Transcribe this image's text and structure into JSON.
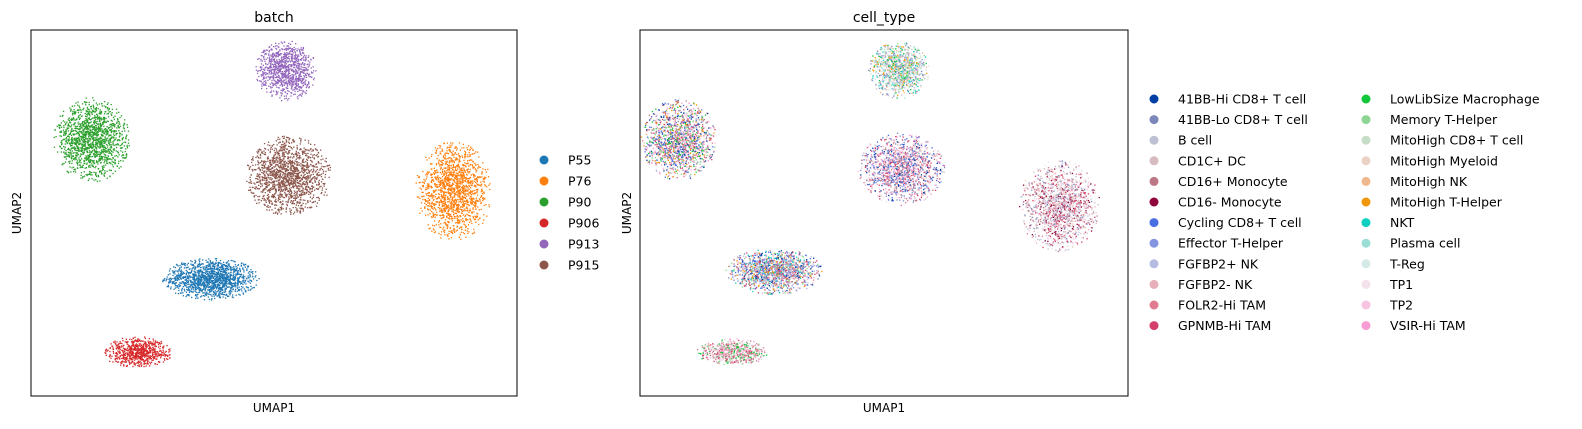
{
  "chart_data": [
    {
      "type": "scatter",
      "title": "batch",
      "xlabel": "UMAP1",
      "ylabel": "UMAP2",
      "xlim": [
        0,
        100
      ],
      "ylim": [
        0,
        100
      ],
      "grid": false,
      "ticks": false,
      "legend": {
        "placement": "right",
        "columns": 1
      },
      "series": [
        {
          "name": "P55",
          "color": "#1f77b4",
          "cluster": {
            "cx": 37,
            "cy": 32,
            "rx": 9.5,
            "ry": 5.5,
            "n": 1400
          }
        },
        {
          "name": "P76",
          "color": "#ff7f0e",
          "cluster": {
            "cx": 87,
            "cy": 56,
            "rx": 7.5,
            "ry": 13,
            "n": 1500
          }
        },
        {
          "name": "P90",
          "color": "#2ca02c",
          "cluster": {
            "cx": 12.5,
            "cy": 70,
            "rx": 7.5,
            "ry": 11,
            "n": 1500
          }
        },
        {
          "name": "P906",
          "color": "#d62728",
          "cluster": {
            "cx": 22,
            "cy": 12,
            "rx": 7,
            "ry": 4,
            "n": 700
          }
        },
        {
          "name": "P913",
          "color": "#9467bd",
          "cluster": {
            "cx": 52.5,
            "cy": 89,
            "rx": 6,
            "ry": 8,
            "n": 1000
          }
        },
        {
          "name": "P915",
          "color": "#8c564b",
          "cluster": {
            "cx": 53,
            "cy": 60,
            "rx": 8.5,
            "ry": 10.5,
            "n": 1500
          }
        }
      ]
    },
    {
      "type": "scatter",
      "title": "cell_type",
      "xlabel": "UMAP1",
      "ylabel": "UMAP2",
      "xlim": [
        0,
        100
      ],
      "ylim": [
        0,
        100
      ],
      "grid": false,
      "ticks": false,
      "legend": {
        "placement": "right",
        "columns": 2
      },
      "series": [
        {
          "name": "41BB-Hi CD8+ T cell",
          "color": "#023fa5"
        },
        {
          "name": "41BB-Lo CD8+ T cell",
          "color": "#7d87b9"
        },
        {
          "name": "B cell",
          "color": "#bec1d4"
        },
        {
          "name": "CD1C+ DC",
          "color": "#d6bcc0"
        },
        {
          "name": "CD16+ Monocyte",
          "color": "#bb7784"
        },
        {
          "name": "CD16- Monocyte",
          "color": "#8e063b"
        },
        {
          "name": "Cycling CD8+ T cell",
          "color": "#4a6fe3"
        },
        {
          "name": "Effector T-Helper",
          "color": "#8595e1"
        },
        {
          "name": "FGFBP2+ NK",
          "color": "#b5bbe3"
        },
        {
          "name": "FGFBP2- NK",
          "color": "#e6afb9"
        },
        {
          "name": "FOLR2-Hi TAM",
          "color": "#e07b91"
        },
        {
          "name": "GPNMB-Hi TAM",
          "color": "#d33f6a"
        },
        {
          "name": "LowLibSize Macrophage",
          "color": "#11c638"
        },
        {
          "name": "Memory T-Helper",
          "color": "#8dd593"
        },
        {
          "name": "MitoHigh CD8+ T cell",
          "color": "#c6dec7"
        },
        {
          "name": "MitoHigh Myeloid",
          "color": "#ead3c6"
        },
        {
          "name": "MitoHigh NK",
          "color": "#f0b98d"
        },
        {
          "name": "MitoHigh T-Helper",
          "color": "#ef9708"
        },
        {
          "name": "NKT",
          "color": "#0fcfc0"
        },
        {
          "name": "Plasma cell",
          "color": "#9cded6"
        },
        {
          "name": "T-Reg",
          "color": "#d5eae7"
        },
        {
          "name": "TP1",
          "color": "#f3e1eb"
        },
        {
          "name": "TP2",
          "color": "#f6c4e1"
        },
        {
          "name": "VSIR-Hi TAM",
          "color": "#f79cd4"
        }
      ],
      "clusters": [
        {
          "cx": 27.5,
          "cy": 34,
          "rx": 9.5,
          "ry": 6,
          "n": 1400,
          "mix": [
            0,
            1,
            6,
            7,
            8,
            9,
            10,
            11,
            4,
            2,
            17,
            13,
            18
          ]
        },
        {
          "cx": 86,
          "cy": 52,
          "rx": 8,
          "ry": 12,
          "n": 1500,
          "mix": [
            3,
            4,
            9,
            10,
            11,
            1,
            2,
            21,
            22,
            15,
            8,
            5
          ]
        },
        {
          "cx": 8,
          "cy": 70,
          "rx": 7.5,
          "ry": 10.5,
          "n": 1500,
          "mix": [
            22,
            23,
            21,
            11,
            4,
            12,
            13,
            6,
            0,
            10,
            17,
            1
          ]
        },
        {
          "cx": 19,
          "cy": 12,
          "rx": 7,
          "ry": 3.5,
          "n": 700,
          "mix": [
            22,
            23,
            21,
            11,
            12,
            13,
            4,
            10,
            9
          ]
        },
        {
          "cx": 53,
          "cy": 89,
          "rx": 6,
          "ry": 7.5,
          "n": 1000,
          "mix": [
            16,
            17,
            15,
            2,
            1,
            18,
            19,
            13,
            12,
            14,
            3,
            7,
            8,
            20
          ]
        },
        {
          "cx": 53.5,
          "cy": 62,
          "rx": 8.5,
          "ry": 9.5,
          "n": 1500,
          "mix": [
            0,
            6,
            7,
            1,
            11,
            10,
            4,
            22,
            23,
            21,
            9,
            3
          ]
        }
      ]
    }
  ]
}
